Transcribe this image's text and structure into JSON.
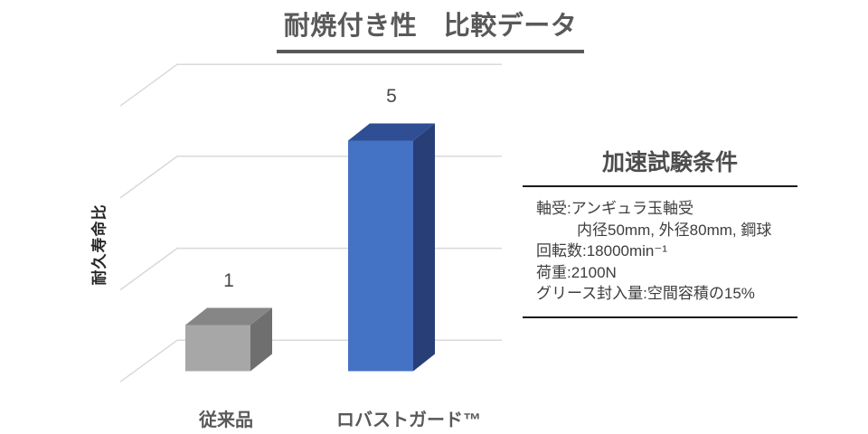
{
  "title": {
    "text": "耐焼付き性　比較データ"
  },
  "chart_data": {
    "type": "bar",
    "style": "3d-column",
    "title": "耐焼付き性　比較データ",
    "ylabel": "耐久寿命比",
    "xlabel": "",
    "categories": [
      "従来品",
      "ロバストガード™"
    ],
    "values": [
      1,
      5
    ],
    "ylim": [
      0,
      8
    ],
    "gridline_step": 2,
    "grid": true,
    "legend": false,
    "gridline_color": "#d9d9d9",
    "bar_colors": [
      {
        "front": "#a7a7a7",
        "top": "#868686",
        "side": "#6f6f6f"
      },
      {
        "front": "#4472c4",
        "top": "#2f4e94",
        "side": "#283e76"
      }
    ]
  },
  "conditions_panel": {
    "title": "加速試験条件",
    "lines": [
      "軸受:アンギュラ玉軸受",
      "内径50mm, 外径80mm, 鋼球",
      "回転数:18000min⁻¹",
      "荷重:2100N",
      "グリース封入量:空間容積の15%"
    ]
  }
}
